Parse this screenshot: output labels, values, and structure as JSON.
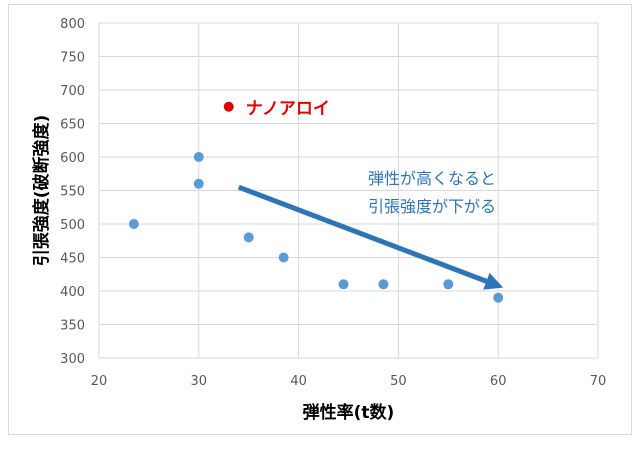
{
  "chart_data": {
    "type": "scatter",
    "xlabel": "弾性率(t数)",
    "ylabel": "引張強度(破断強度)",
    "xlim": [
      20,
      70
    ],
    "ylim": [
      300,
      800
    ],
    "xticks": [
      "20",
      "30",
      "40",
      "50",
      "60",
      "70"
    ],
    "yticks": [
      "300",
      "350",
      "400",
      "450",
      "500",
      "550",
      "600",
      "650",
      "700",
      "750",
      "800"
    ],
    "grid": true,
    "series": [
      {
        "color": "#5b9bd5",
        "points": [
          {
            "x": 23.5,
            "y": 500
          },
          {
            "x": 30,
            "y": 600
          },
          {
            "x": 30,
            "y": 560
          },
          {
            "x": 35,
            "y": 480
          },
          {
            "x": 38.5,
            "y": 450
          },
          {
            "x": 44.5,
            "y": 410
          },
          {
            "x": 48.5,
            "y": 410
          },
          {
            "x": 55,
            "y": 410
          },
          {
            "x": 60,
            "y": 390
          }
        ]
      },
      {
        "name": "ナノアロイ",
        "color": "#e00000",
        "points": [
          {
            "x": 33,
            "y": 675
          }
        ]
      }
    ],
    "annotation": {
      "lines": [
        "弾性が高くなると",
        "引張強度が下がる"
      ],
      "color": "#2e75b6",
      "arrow_from": {
        "x": 34,
        "y": 555
      },
      "arrow_to": {
        "x": 60.5,
        "y": 405
      }
    }
  }
}
